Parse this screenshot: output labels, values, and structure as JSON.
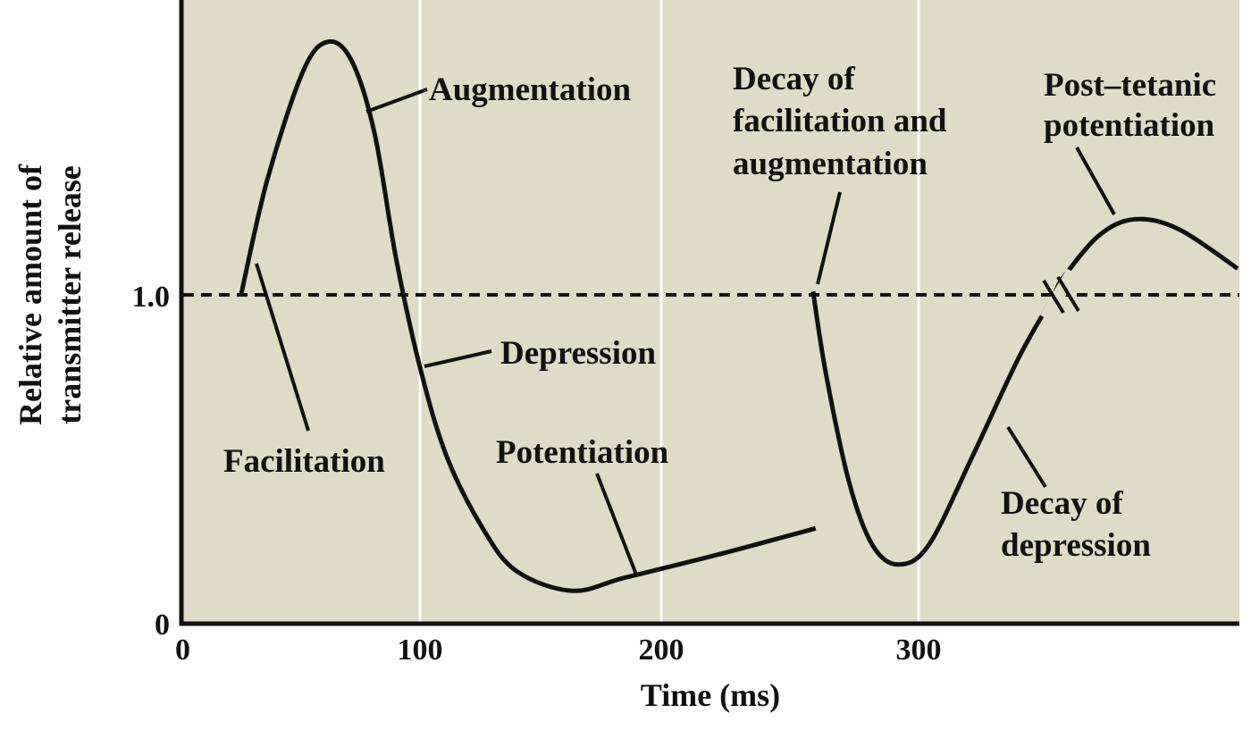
{
  "chart_data": {
    "type": "line",
    "title": "",
    "xlabel": "Time (ms)",
    "ylabel": [
      "Relative amount of",
      "transmitter release"
    ],
    "x_ticks": [
      0,
      100,
      200,
      300
    ],
    "x_tick_labels": [
      "0",
      "100",
      "200",
      "300"
    ],
    "y_ticks": [
      0,
      1.0
    ],
    "y_tick_labels": [
      "0",
      "1.0"
    ],
    "ylim": [
      0,
      1.9
    ],
    "xlim": [
      0,
      424
    ],
    "grid": "vertical lines at x ticks",
    "reference_line": {
      "y": 1.0,
      "style": "dashed"
    },
    "axis_break": {
      "x": 260,
      "note": "time axis break between segments"
    },
    "series": [
      {
        "name": "segment-1",
        "points": [
          [
            25,
            1.0
          ],
          [
            36,
            1.35
          ],
          [
            51,
            1.68
          ],
          [
            61.5,
            1.77
          ],
          [
            71.5,
            1.71
          ],
          [
            81,
            1.49
          ],
          [
            90,
            1.11
          ],
          [
            100,
            0.78
          ],
          [
            111,
            0.51
          ],
          [
            126,
            0.29
          ],
          [
            140,
            0.16
          ],
          [
            163,
            0.1
          ],
          [
            185,
            0.14
          ],
          [
            222,
            0.21
          ],
          [
            260,
            0.29
          ]
        ]
      },
      {
        "name": "segment-2",
        "points": [
          [
            259,
            1.01
          ],
          [
            264,
            0.76
          ],
          [
            273,
            0.43
          ],
          [
            282,
            0.24
          ],
          [
            292,
            0.18
          ],
          [
            304,
            0.24
          ],
          [
            321,
            0.51
          ],
          [
            339,
            0.81
          ],
          [
            352,
            0.99
          ],
          [
            356,
            1.05
          ],
          [
            370,
            1.18
          ],
          [
            384,
            1.23
          ],
          [
            401,
            1.2
          ],
          [
            424,
            1.08
          ]
        ]
      }
    ],
    "annotations": [
      {
        "id": "augmentation",
        "lines": [
          "Augmentation"
        ]
      },
      {
        "id": "facilitation",
        "lines": [
          "Facilitation"
        ]
      },
      {
        "id": "depression",
        "lines": [
          "Depression"
        ]
      },
      {
        "id": "potentiation",
        "lines": [
          "Potentiation"
        ]
      },
      {
        "id": "decay-fac-aug",
        "lines": [
          "Decay of",
          "facilitation and",
          "augmentation"
        ]
      },
      {
        "id": "ptp",
        "lines": [
          "Post–tetanic",
          "potentiation"
        ]
      },
      {
        "id": "decay-depression",
        "lines": [
          "Decay of",
          "depression"
        ]
      }
    ],
    "colors": {
      "background": "#dedcc6",
      "line": "#111111",
      "grid": "#ffffff"
    }
  }
}
